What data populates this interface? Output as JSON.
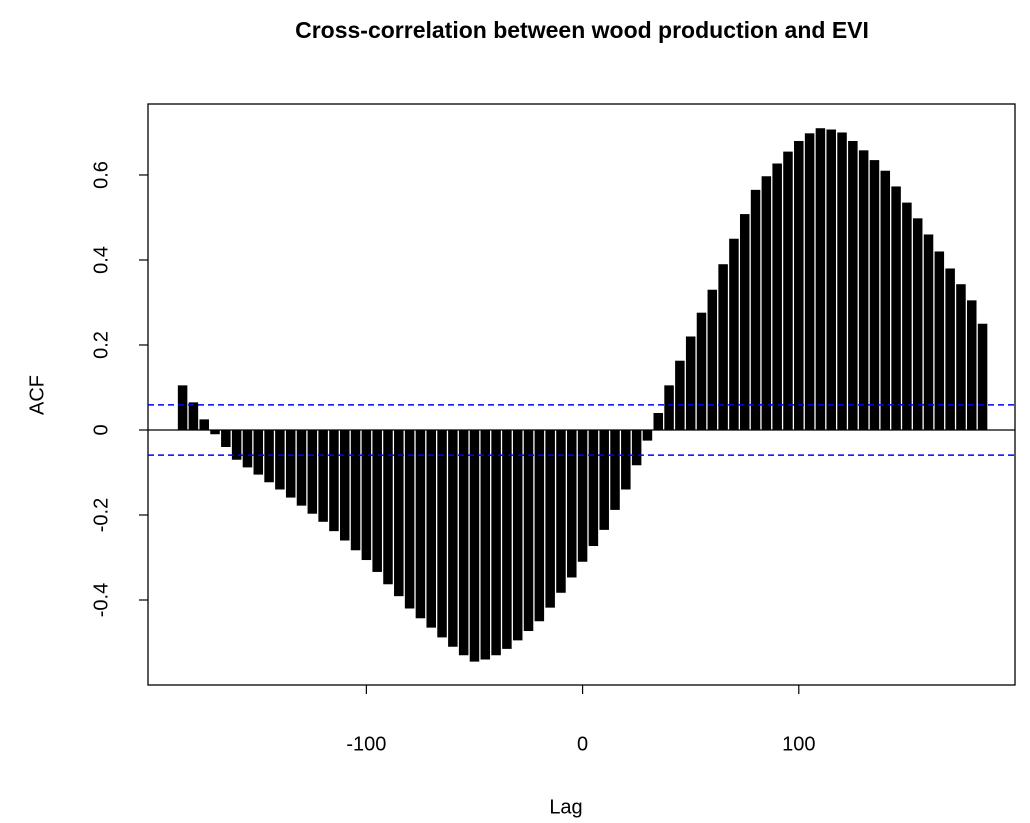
{
  "chart_data": {
    "type": "bar",
    "title": "Cross-correlation between wood production and EVI",
    "x_label": "Lag",
    "y_label": "ACF",
    "x": [
      -185,
      -180,
      -175,
      -170,
      -165,
      -160,
      -155,
      -150,
      -145,
      -140,
      -135,
      -130,
      -125,
      -120,
      -115,
      -110,
      -105,
      -100,
      -95,
      -90,
      -85,
      -80,
      -75,
      -70,
      -65,
      -60,
      -55,
      -50,
      -45,
      -40,
      -35,
      -30,
      -25,
      -20,
      -15,
      -10,
      -5,
      0,
      5,
      10,
      15,
      20,
      25,
      30,
      35,
      40,
      45,
      50,
      55,
      60,
      65,
      70,
      75,
      80,
      85,
      90,
      95,
      100,
      105,
      110,
      115,
      120,
      125,
      130,
      135,
      140,
      145,
      150,
      155,
      160,
      165,
      170,
      175,
      180,
      185
    ],
    "values": [
      0.105,
      0.065,
      0.025,
      -0.01,
      -0.04,
      -0.07,
      -0.088,
      -0.105,
      -0.123,
      -0.14,
      -0.159,
      -0.178,
      -0.197,
      -0.216,
      -0.238,
      -0.26,
      -0.283,
      -0.306,
      -0.334,
      -0.363,
      -0.391,
      -0.42,
      -0.443,
      -0.465,
      -0.488,
      -0.51,
      -0.53,
      -0.545,
      -0.54,
      -0.53,
      -0.515,
      -0.495,
      -0.473,
      -0.45,
      -0.418,
      -0.383,
      -0.347,
      -0.31,
      -0.273,
      -0.235,
      -0.188,
      -0.14,
      -0.083,
      -0.025,
      0.04,
      0.105,
      0.163,
      0.22,
      0.276,
      0.33,
      0.39,
      0.45,
      0.508,
      0.565,
      0.597,
      0.627,
      0.655,
      0.68,
      0.698,
      0.71,
      0.707,
      0.7,
      0.68,
      0.658,
      0.635,
      0.61,
      0.573,
      0.535,
      0.498,
      0.46,
      0.42,
      0.38,
      0.343,
      0.305,
      0.25
    ],
    "color": "#000000",
    "ci_lines": [
      0.059,
      -0.059
    ],
    "ci_color": "#0000ff",
    "xlim": [
      -201,
      200
    ],
    "xticks": [
      -100,
      0,
      100
    ],
    "ylim": [
      -0.6,
      0.767
    ],
    "yticks": [
      -0.4,
      -0.2,
      0.0,
      0.2,
      0.4,
      0.6
    ],
    "grid": false
  }
}
